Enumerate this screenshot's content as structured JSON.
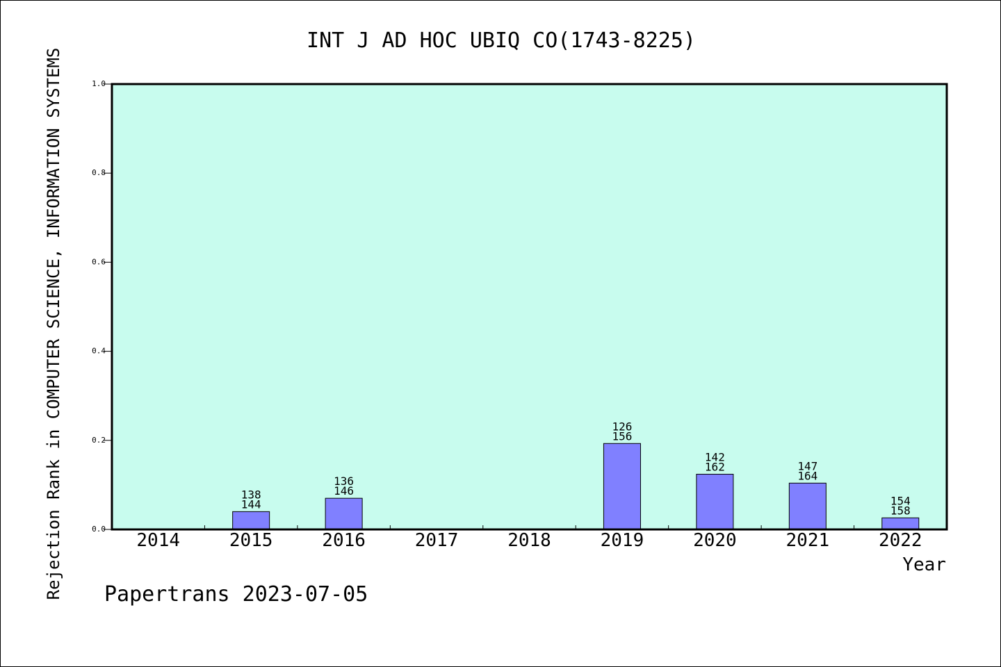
{
  "chart_data": {
    "type": "bar",
    "title": "INT J AD HOC UBIQ CO(1743-8225)",
    "xlabel": "Year",
    "ylabel": "Rejection Rank in COMPUTER SCIENCE, INFORMATION SYSTEMS",
    "categories": [
      "2014",
      "2015",
      "2016",
      "2017",
      "2018",
      "2019",
      "2020",
      "2021",
      "2022"
    ],
    "values": [
      0,
      0.04,
      0.07,
      0,
      0,
      0.193,
      0.124,
      0.104,
      0.026
    ],
    "bar_labels": [
      [
        "",
        ""
      ],
      [
        "138",
        "144"
      ],
      [
        "136",
        "146"
      ],
      [
        "",
        ""
      ],
      [
        "",
        ""
      ],
      [
        "126",
        "156"
      ],
      [
        "142",
        "162"
      ],
      [
        "147",
        "164"
      ],
      [
        "154",
        "158"
      ]
    ],
    "ylim": [
      0,
      1.0
    ],
    "yticks": [
      "0.0",
      "0.2",
      "0.4",
      "0.6",
      "0.8",
      "1.0"
    ],
    "grid": false,
    "footer": "Papertrans 2023-07-05",
    "colors": {
      "plot_bg": "#c8fcee",
      "bar": "#8080ff",
      "axis": "#000000"
    }
  }
}
